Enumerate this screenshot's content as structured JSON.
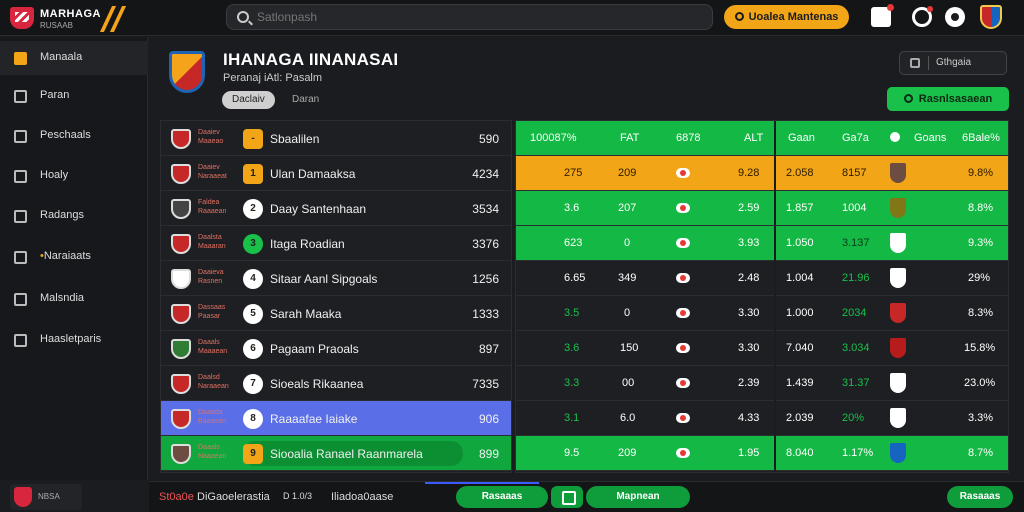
{
  "app": {
    "logo_line1": "MARHAGA",
    "logo_line2": "RUSAAB",
    "search_placeholder": "Satlonpash",
    "top_cta": "Uoalea Mantenas"
  },
  "sidebar": {
    "items": [
      {
        "label": "Manaala",
        "icon": "home-icon",
        "active": true
      },
      {
        "label": "Paran",
        "icon": "chart-icon"
      },
      {
        "label": "Peschaals",
        "icon": "trophy-icon"
      },
      {
        "label": "Hoaly",
        "icon": "search-icon"
      },
      {
        "label": "Radangs",
        "icon": "list-icon"
      },
      {
        "label": "Naraiaats",
        "icon": "users-icon",
        "highlight": true
      },
      {
        "label": "Malsndia",
        "icon": "calendar-icon"
      },
      {
        "label": "Haasletparis",
        "icon": "settings-icon"
      }
    ],
    "footer_label": "NBSA"
  },
  "header": {
    "title": "IHANAGA IINANASAI",
    "subtitle": "Peranaj iAtl: Pasalm",
    "tabs": [
      "Daclaiv",
      "Daran"
    ],
    "filter_label": "Gthgaia",
    "green_button": "Rasnlsasaean"
  },
  "left_table": {
    "header": {
      "name": "Sbaalilen",
      "pts": "590",
      "pos": "-"
    },
    "rows": [
      {
        "abbr": "Daaiev Naraaeat",
        "pos": "1",
        "name": "Ulan Damaaksa",
        "pts": "4234",
        "crest": "#c62828"
      },
      {
        "abbr": "Faldea Raaaean",
        "pos": "2",
        "name": "Daay Santenhaan",
        "pts": "3534",
        "crest": "#444"
      },
      {
        "abbr": "Daalsta Maaaran",
        "pos": "3",
        "name": "Itaga Roadian",
        "pts": "3376",
        "crest": "#c62828"
      },
      {
        "abbr": "Daaieva Rasnen",
        "pos": "4",
        "name": "Sitaar Aanl Sipgoals",
        "pts": "1256",
        "crest": "#fff"
      },
      {
        "abbr": "Dassaas Paasar",
        "pos": "5",
        "name": "Sarah Maaka",
        "pts": "1333",
        "crest": "#c62828"
      },
      {
        "abbr": "Daaals Maaaean",
        "pos": "6",
        "name": "Pagaam Praoals",
        "pts": "897",
        "crest": "#2e7d32"
      },
      {
        "abbr": "Daalsd Naraaean",
        "pos": "7",
        "name": "Sioeals Rikaanea",
        "pts": "7335",
        "crest": "#c62828"
      },
      {
        "abbr": "Daaada Baaaean",
        "pos": "8",
        "name": "Raaaafae Iaiake",
        "pts": "906",
        "crest": "#c62828"
      },
      {
        "abbr": "Daaals Naaaean",
        "pos": "9",
        "name": "Siooalia Ranael Raanmarela",
        "pts": "899",
        "crest": "#6d4c41"
      }
    ]
  },
  "right_table": {
    "header": [
      "100087%",
      "FAT",
      "6878",
      "ALT",
      "Gaan",
      "Ga7a",
      "Goans",
      "6Bale%"
    ],
    "rows": [
      [
        "275",
        "209",
        "9.28",
        "2.058",
        "8157",
        "9.8%"
      ],
      [
        "3.6",
        "207",
        "2.59",
        "1.857",
        "1004",
        "8.8%"
      ],
      [
        "623",
        "0",
        "3.93",
        "1.050",
        "3.137",
        "9.3%"
      ],
      [
        "6.65",
        "349",
        "2.48",
        "1.004",
        "21.96",
        "29%"
      ],
      [
        "3.5",
        "0",
        "3.30",
        "1.000",
        "2034",
        "8.3%"
      ],
      [
        "3.6",
        "150",
        "3.30",
        "7.040",
        "3.034",
        "15.8%"
      ],
      [
        "3.3",
        "00",
        "2.39",
        "1.439",
        "31.37",
        "23.0%"
      ],
      [
        "3.1",
        "6.0",
        "4.33",
        "2.039",
        "20%",
        "3.3%"
      ],
      [
        "9.5",
        "209",
        "1.95",
        "8.040",
        "1.17%",
        "8.7%"
      ]
    ]
  },
  "footer": {
    "left": "St0a0e",
    "left2": "DiGaoelerastia",
    "mid1": "D 1.0/3",
    "mid2": "Iliadoa0aase",
    "btn1": "Rasaaas",
    "btn2": "Mapnean",
    "btn3": "Rasaaas"
  }
}
